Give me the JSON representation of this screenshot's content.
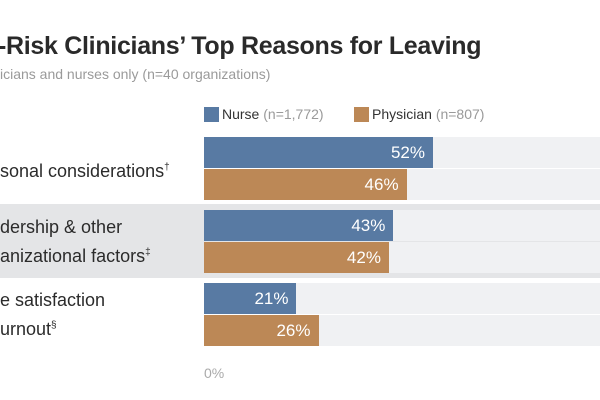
{
  "chart_data": {
    "type": "bar",
    "orientation": "horizontal",
    "title": "-Risk Clinicians’ Top Reasons for Leaving",
    "subtitle": "icians and nurses only (n=40 organizations)",
    "categories": [
      {
        "line1": "sonal considerations",
        "line2": "",
        "mark": "†"
      },
      {
        "line1": "dership & other",
        "line2": "anizational factors",
        "mark": "‡"
      },
      {
        "line1": "e satisfaction",
        "line2": "urnout",
        "mark": "§"
      }
    ],
    "series": [
      {
        "name": "Nurse",
        "n_label": "(n=1,772)",
        "color": "#587aa3",
        "values": [
          52,
          43,
          21
        ],
        "labels": [
          "52%",
          "43%",
          "21%"
        ]
      },
      {
        "name": "Physician",
        "n_label": "(n=807)",
        "color": "#bc8856",
        "values": [
          46,
          42,
          26
        ],
        "labels": [
          "46%",
          "42%",
          "26%"
        ]
      }
    ],
    "xlim": [
      0,
      100
    ],
    "x_ticks": [
      "0%"
    ],
    "legend": "top"
  }
}
